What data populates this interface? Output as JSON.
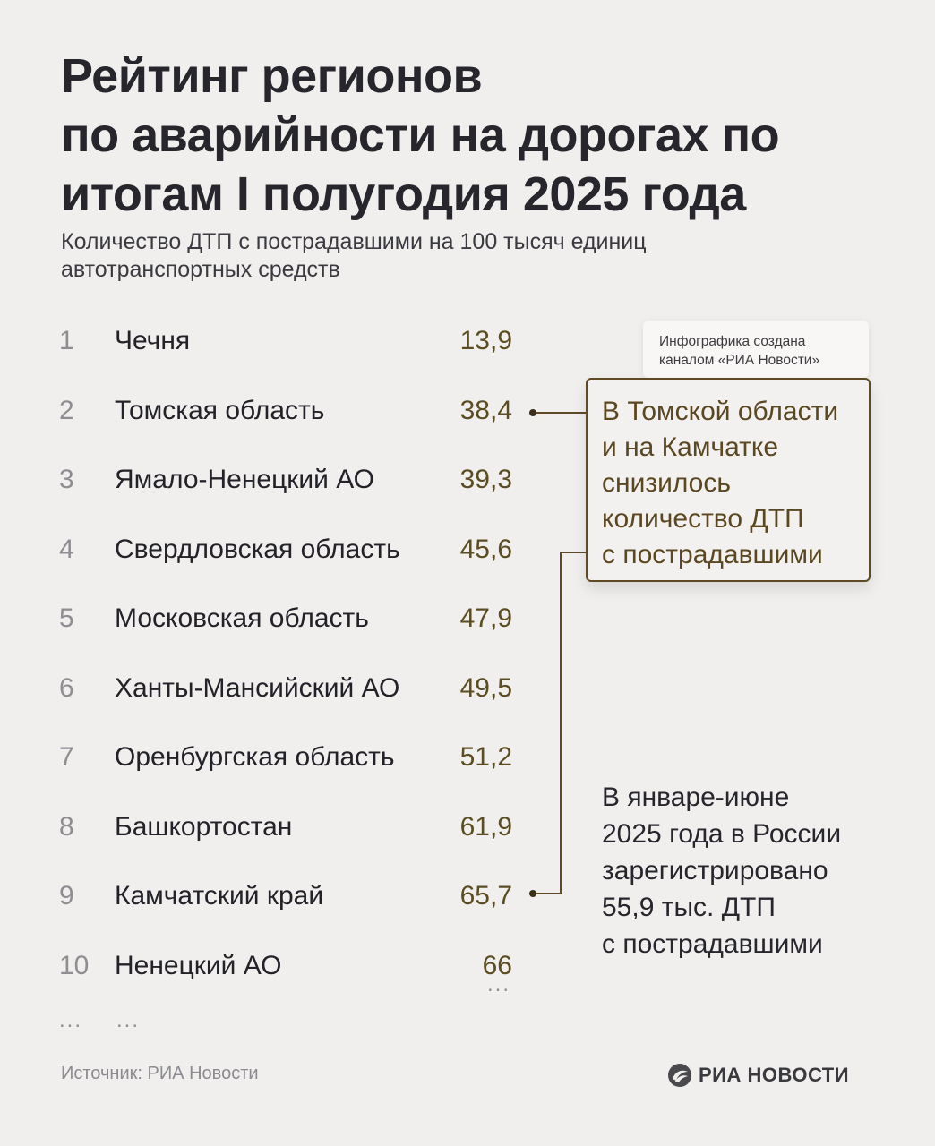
{
  "title_lines": [
    "Рейтинг регионов",
    "по аварийности на дорогах по",
    "итогам I полугодия 2025 года"
  ],
  "subtitle_lines": [
    "Количество ДТП с пострадавшими на 100 тысяч единиц",
    "автотранспортных средств"
  ],
  "chart_data": {
    "type": "table",
    "columns": [
      "rank",
      "region",
      "value"
    ],
    "rows": [
      {
        "rank": "1",
        "region": "Чечня",
        "value": "13,9"
      },
      {
        "rank": "2",
        "region": "Томская область",
        "value": "38,4"
      },
      {
        "rank": "3",
        "region": "Ямало-Ненецкий АО",
        "value": "39,3"
      },
      {
        "rank": "4",
        "region": "Свердловская область",
        "value": "45,6"
      },
      {
        "rank": "5",
        "region": "Московская область",
        "value": "47,9"
      },
      {
        "rank": "6",
        "region": "Ханты-Мансийский АО",
        "value": "49,5"
      },
      {
        "rank": "7",
        "region": "Оренбургская область",
        "value": "51,2"
      },
      {
        "rank": "8",
        "region": "Башкортостан",
        "value": "61,9"
      },
      {
        "rank": "9",
        "region": "Камчатский край",
        "value": "65,7"
      },
      {
        "rank": "10",
        "region": "Ненецкий АО",
        "value": "66"
      }
    ],
    "highlighted_ranks": [
      "2",
      "9"
    ],
    "continuation": {
      "rank": "...",
      "region": "...",
      "value": "..."
    }
  },
  "credit_lines": [
    "Инфографика создана",
    "каналом «РИА Новости»"
  ],
  "callout_lines": [
    "В Томской области",
    "и на Камчатке",
    "снизилось",
    "количество ДТП",
    "с пострадавшими"
  ],
  "note_lines": [
    "В январе-июне",
    "2025 года в России",
    "зарегистрировано",
    "55,9 тыс. ДТП",
    "с пострадавшими"
  ],
  "source": "Источник: РИА Новости",
  "logo_text": "РИА НОВОСТИ",
  "logo_icon": "ria-logo-icon",
  "colors": {
    "background": "#f0efed",
    "title": "#26262c",
    "value": "#5b4c22",
    "accent": "#5e4a24",
    "rank": "#8e8e92"
  }
}
